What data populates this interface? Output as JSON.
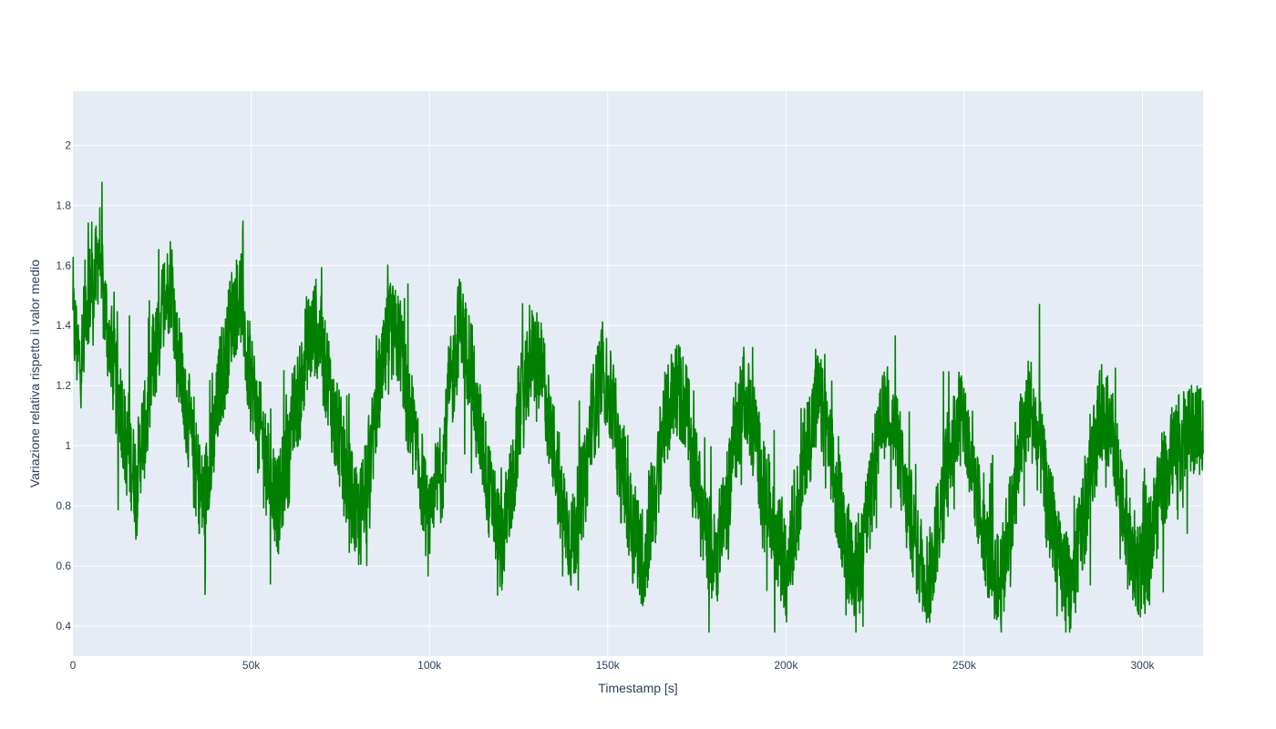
{
  "chart_data": {
    "type": "line",
    "title": "",
    "xlabel": "Timestamp [s]",
    "ylabel": "Variazione relativa rispetto il valor medio",
    "xlim": [
      0,
      317000
    ],
    "ylim": [
      0.3,
      2.18
    ],
    "x_ticks": [
      0,
      50000,
      100000,
      150000,
      200000,
      250000,
      300000
    ],
    "x_tick_labels": [
      "0",
      "50k",
      "100k",
      "150k",
      "200k",
      "250k",
      "300k"
    ],
    "y_ticks": [
      0.4,
      0.6,
      0.8,
      1.0,
      1.2,
      1.4,
      1.6,
      1.8,
      2.0
    ],
    "y_tick_labels": [
      "0.4",
      "0.6",
      "0.8",
      "1",
      "1.2",
      "1.4",
      "1.6",
      "1.8",
      "2"
    ],
    "grid": true,
    "legend": "none",
    "colors": {
      "plot_bg": "#e5ecf6",
      "grid": "#ffffff",
      "line": "#008000",
      "text": "#2a3f5f"
    },
    "series": [
      {
        "color": "#008000",
        "x": [
          0,
          2000,
          4000,
          6000,
          7500,
          9000,
          10500,
          13000,
          15500,
          17500,
          20000,
          23000,
          26000,
          27500,
          29500,
          32000,
          34500,
          36500,
          39000,
          42000,
          45000,
          47000,
          49500,
          52500,
          55000,
          57500,
          60000,
          63000,
          66000,
          68500,
          71000,
          74000,
          77500,
          80000,
          83000,
          86000,
          89000,
          91500,
          94500,
          97500,
          100000,
          103000,
          106000,
          108500,
          111000,
          114000,
          117500,
          120000,
          123000,
          126000,
          129000,
          131500,
          134500,
          137500,
          140000,
          143000,
          146000,
          148500,
          151000,
          154000,
          157500,
          160000,
          163000,
          166000,
          169000,
          171500,
          174500,
          177500,
          180000,
          183000,
          186000,
          188500,
          191000,
          194000,
          197500,
          200000,
          203000,
          206000,
          209000,
          211500,
          214500,
          217500,
          220000,
          223000,
          226000,
          228500,
          231000,
          234000,
          237500,
          240000,
          243000,
          246000,
          249000,
          251500,
          254500,
          257500,
          260000,
          263000,
          266000,
          268500,
          271000,
          274000,
          277500,
          280000,
          283000,
          286000,
          289000,
          291500,
          294500,
          297500,
          300000,
          303000,
          306000,
          309000,
          312000,
          315000,
          317000
        ],
        "values": [
          1.4,
          1.28,
          1.5,
          1.55,
          1.65,
          1.45,
          1.3,
          1.15,
          0.98,
          0.9,
          1.05,
          1.3,
          1.5,
          1.55,
          1.3,
          1.1,
          0.92,
          0.82,
          1.0,
          1.25,
          1.45,
          1.5,
          1.25,
          1.05,
          0.92,
          0.8,
          0.95,
          1.15,
          1.35,
          1.4,
          1.25,
          1.05,
          0.85,
          0.75,
          0.95,
          1.2,
          1.38,
          1.35,
          1.1,
          0.9,
          0.72,
          0.9,
          1.2,
          1.4,
          1.3,
          1.05,
          0.82,
          0.68,
          0.85,
          1.15,
          1.3,
          1.25,
          1.0,
          0.78,
          0.68,
          0.85,
          1.12,
          1.25,
          1.15,
          0.9,
          0.72,
          0.62,
          0.82,
          1.08,
          1.2,
          1.15,
          0.9,
          0.7,
          0.62,
          0.8,
          1.05,
          1.18,
          1.05,
          0.85,
          0.68,
          0.6,
          0.78,
          1.02,
          1.15,
          1.05,
          0.82,
          0.65,
          0.58,
          0.78,
          1.02,
          1.15,
          1.02,
          0.8,
          0.62,
          0.56,
          0.75,
          1.0,
          1.12,
          1.0,
          0.78,
          0.6,
          0.55,
          0.75,
          1.02,
          1.15,
          1.0,
          0.78,
          0.58,
          0.52,
          0.72,
          0.98,
          1.12,
          1.02,
          0.8,
          0.62,
          0.58,
          0.75,
          0.9,
          1.0,
          1.02,
          1.05,
          1.08
        ],
        "noise_amplitude": 0.22
      }
    ]
  }
}
